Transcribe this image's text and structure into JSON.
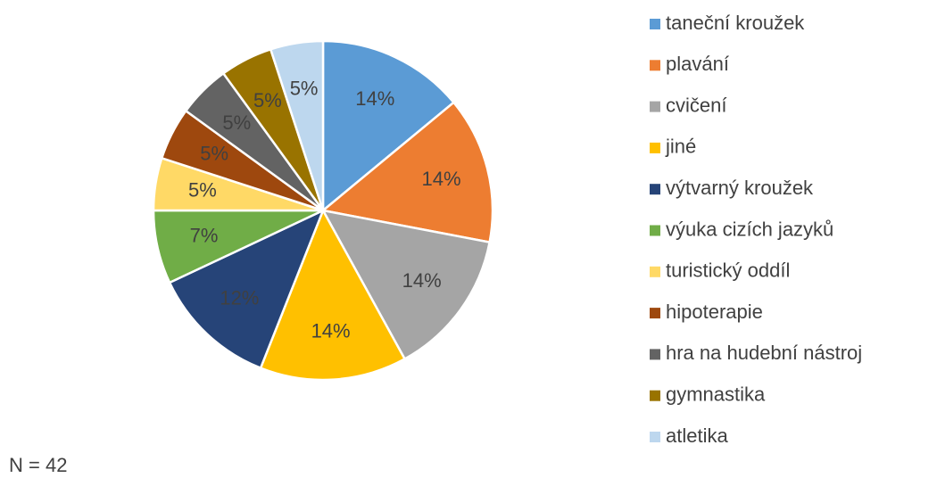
{
  "chart_data": {
    "type": "pie",
    "categories": [
      "taneční kroužek",
      "plavání",
      "cvičení",
      "jiné",
      "výtvarný kroužek",
      "výuka cizích jazyků",
      "turistický oddíl",
      "hipoterapie",
      "hra na hudební nástroj",
      "gymnastika",
      "atletika"
    ],
    "values": [
      14,
      14,
      14,
      14,
      12,
      7,
      5,
      5,
      5,
      5,
      5
    ],
    "value_labels": [
      "14%",
      "14%",
      "14%",
      "14%",
      "12%",
      "7%",
      "5%",
      "5%",
      "5%",
      "5%",
      "5%"
    ],
    "colors": [
      "#5b9bd5",
      "#ed7d31",
      "#a5a5a5",
      "#ffc000",
      "#264478",
      "#70ad47",
      "#ffd966",
      "#9e480e",
      "#636363",
      "#997300",
      "#bdd7ee"
    ],
    "legend": "right",
    "annotation": "N = 42"
  }
}
